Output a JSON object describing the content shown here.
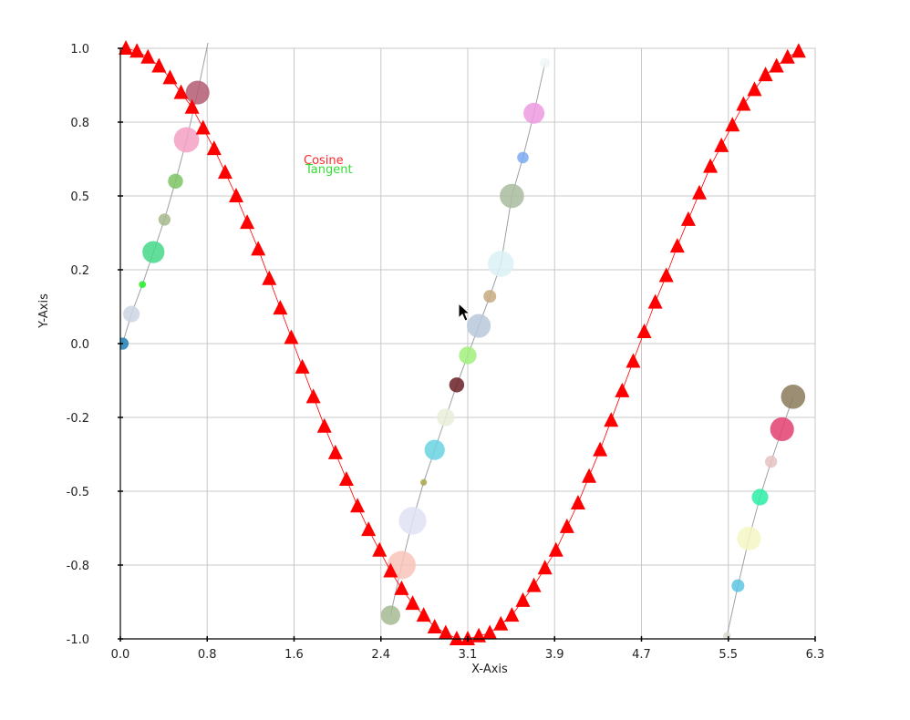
{
  "chart_data": {
    "type": "scatter",
    "xlabel": "X-Axis",
    "ylabel": "Y-Axis",
    "xlim": [
      0.0,
      6.3
    ],
    "ylim": [
      -1.0,
      1.0
    ],
    "x_ticks": [
      "0.0",
      "0.8",
      "1.6",
      "2.4",
      "3.1",
      "3.9",
      "4.7",
      "5.5",
      "6.3"
    ],
    "y_ticks": [
      "1.0",
      "0.8",
      "0.5",
      "0.2",
      "0.0",
      "-0.2",
      "-0.5",
      "-0.8",
      "-1.0"
    ],
    "grid": true,
    "legend": {
      "placement": "top-left",
      "entries": [
        {
          "name": "Cosine",
          "color": "#ff2a2a"
        },
        {
          "name": "Tangent",
          "color": "#33dd33"
        }
      ]
    },
    "series": [
      {
        "name": "Cosine",
        "marker": "triangle",
        "color": "#ff0000",
        "x": [
          0.05,
          0.15,
          0.25,
          0.35,
          0.45,
          0.55,
          0.65,
          0.75,
          0.85,
          0.95,
          1.05,
          1.15,
          1.25,
          1.35,
          1.45,
          1.55,
          1.65,
          1.75,
          1.85,
          1.95,
          2.05,
          2.15,
          2.25,
          2.35,
          2.45,
          2.55,
          2.65,
          2.75,
          2.85,
          2.95,
          3.05,
          3.15,
          3.25,
          3.35,
          3.45,
          3.55,
          3.65,
          3.75,
          3.85,
          3.95,
          4.05,
          4.15,
          4.25,
          4.35,
          4.45,
          4.55,
          4.65,
          4.75,
          4.85,
          4.95,
          5.05,
          5.15,
          5.25,
          5.35,
          5.45,
          5.55,
          5.65,
          5.75,
          5.85,
          5.95,
          6.05,
          6.15
        ],
        "y": [
          1.0,
          0.99,
          0.97,
          0.94,
          0.9,
          0.85,
          0.8,
          0.73,
          0.66,
          0.58,
          0.5,
          0.41,
          0.32,
          0.22,
          0.12,
          0.02,
          -0.08,
          -0.18,
          -0.28,
          -0.37,
          -0.46,
          -0.55,
          -0.63,
          -0.7,
          -0.77,
          -0.83,
          -0.88,
          -0.92,
          -0.96,
          -0.98,
          -1.0,
          -1.0,
          -0.99,
          -0.98,
          -0.95,
          -0.92,
          -0.87,
          -0.82,
          -0.76,
          -0.7,
          -0.62,
          -0.54,
          -0.45,
          -0.36,
          -0.26,
          -0.16,
          -0.06,
          0.04,
          0.14,
          0.23,
          0.33,
          0.42,
          0.51,
          0.6,
          0.67,
          0.74,
          0.81,
          0.86,
          0.91,
          0.94,
          0.97,
          0.99
        ]
      },
      {
        "name": "Tangent",
        "marker": "circle",
        "line_color": "#9aa0a8",
        "points": [
          {
            "x": 0.02,
            "y": 0.0,
            "r": 0.055,
            "color": "#1f7fb8"
          },
          {
            "x": 0.1,
            "y": 0.1,
            "r": 0.075,
            "color": "#cdd5e2"
          },
          {
            "x": 0.2,
            "y": 0.2,
            "r": 0.032,
            "color": "#22ee22"
          },
          {
            "x": 0.3,
            "y": 0.31,
            "r": 0.1,
            "color": "#44d888"
          },
          {
            "x": 0.4,
            "y": 0.42,
            "r": 0.055,
            "color": "#a4ba8c"
          },
          {
            "x": 0.5,
            "y": 0.55,
            "r": 0.068,
            "color": "#7cc464"
          },
          {
            "x": 0.6,
            "y": 0.69,
            "r": 0.115,
            "color": "#f4a0c4"
          },
          {
            "x": 0.7,
            "y": 0.85,
            "r": 0.108,
            "color": "#b45a72"
          },
          {
            "x": 0.8,
            "y": 1.03,
            "r": 0.03,
            "color": "#9aa6d0"
          },
          {
            "x": 2.45,
            "y": -0.92,
            "r": 0.088,
            "color": "#a6ba92"
          },
          {
            "x": 2.55,
            "y": -0.75,
            "r": 0.128,
            "color": "#f8c4b8"
          },
          {
            "x": 2.65,
            "y": -0.6,
            "r": 0.125,
            "color": "#dfe2f5"
          },
          {
            "x": 2.75,
            "y": -0.47,
            "r": 0.03,
            "color": "#a8a84a"
          },
          {
            "x": 2.85,
            "y": -0.36,
            "r": 0.092,
            "color": "#6ad4e2"
          },
          {
            "x": 2.95,
            "y": -0.25,
            "r": 0.08,
            "color": "#e8eed8"
          },
          {
            "x": 3.05,
            "y": -0.14,
            "r": 0.068,
            "color": "#6a1e26"
          },
          {
            "x": 3.15,
            "y": -0.04,
            "r": 0.08,
            "color": "#a2ee7c"
          },
          {
            "x": 3.25,
            "y": 0.06,
            "r": 0.108,
            "color": "#b8c8da"
          },
          {
            "x": 3.35,
            "y": 0.16,
            "r": 0.058,
            "color": "#c8aa80"
          },
          {
            "x": 3.45,
            "y": 0.27,
            "r": 0.118,
            "color": "#daf2f6"
          },
          {
            "x": 3.55,
            "y": 0.5,
            "r": 0.11,
            "color": "#a8bc9e"
          },
          {
            "x": 3.65,
            "y": 0.63,
            "r": 0.052,
            "color": "#7aaaf2"
          },
          {
            "x": 3.75,
            "y": 0.78,
            "r": 0.095,
            "color": "#ee9ae2"
          },
          {
            "x": 3.85,
            "y": 0.95,
            "r": 0.045,
            "color": "#eef4f4"
          },
          {
            "x": 5.5,
            "y": -0.99,
            "r": 0.035,
            "color": "#d8dcd0"
          },
          {
            "x": 5.6,
            "y": -0.82,
            "r": 0.058,
            "color": "#5ec4e2"
          },
          {
            "x": 5.7,
            "y": -0.66,
            "r": 0.108,
            "color": "#f6f6c6"
          },
          {
            "x": 5.8,
            "y": -0.52,
            "r": 0.075,
            "color": "#2ceea4"
          },
          {
            "x": 5.9,
            "y": -0.4,
            "r": 0.055,
            "color": "#e6c2c2"
          },
          {
            "x": 6.0,
            "y": -0.29,
            "r": 0.108,
            "color": "#e2406e"
          },
          {
            "x": 6.1,
            "y": -0.18,
            "r": 0.11,
            "color": "#8a7a5a"
          }
        ]
      }
    ]
  }
}
